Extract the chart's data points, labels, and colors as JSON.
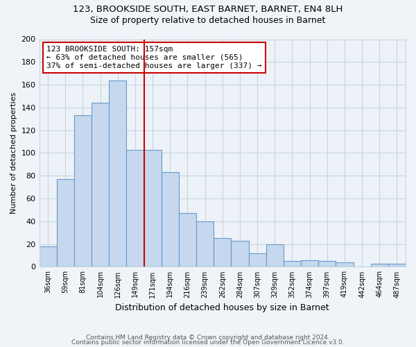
{
  "title1": "123, BROOKSIDE SOUTH, EAST BARNET, BARNET, EN4 8LH",
  "title2": "Size of property relative to detached houses in Barnet",
  "xlabel": "Distribution of detached houses by size in Barnet",
  "ylabel": "Number of detached properties",
  "bar_labels": [
    "36sqm",
    "59sqm",
    "81sqm",
    "104sqm",
    "126sqm",
    "149sqm",
    "171sqm",
    "194sqm",
    "216sqm",
    "239sqm",
    "262sqm",
    "284sqm",
    "307sqm",
    "329sqm",
    "352sqm",
    "374sqm",
    "397sqm",
    "419sqm",
    "442sqm",
    "464sqm",
    "487sqm"
  ],
  "bar_values": [
    18,
    77,
    133,
    144,
    164,
    103,
    103,
    83,
    47,
    40,
    25,
    23,
    12,
    20,
    5,
    6,
    5,
    4,
    0,
    3,
    3
  ],
  "bar_color": "#c5d8ed",
  "bar_edge_color": "#6699cc",
  "vline_x": 5.5,
  "vline_color": "#cc0000",
  "annotation_text": "123 BROOKSIDE SOUTH: 157sqm\n← 63% of detached houses are smaller (565)\n37% of semi-detached houses are larger (337) →",
  "annotation_box_color": "#ffffff",
  "annotation_box_edge": "#cc0000",
  "ylim": [
    0,
    200
  ],
  "yticks": [
    0,
    20,
    40,
    60,
    80,
    100,
    120,
    140,
    160,
    180,
    200
  ],
  "footer1": "Contains HM Land Registry data © Crown copyright and database right 2024.",
  "footer2": "Contains public sector information licensed under the Open Government Licence v3.0.",
  "background_color": "#f0f4f8",
  "plot_bg_color": "#edf2f8",
  "grid_color": "#c8d4e0"
}
